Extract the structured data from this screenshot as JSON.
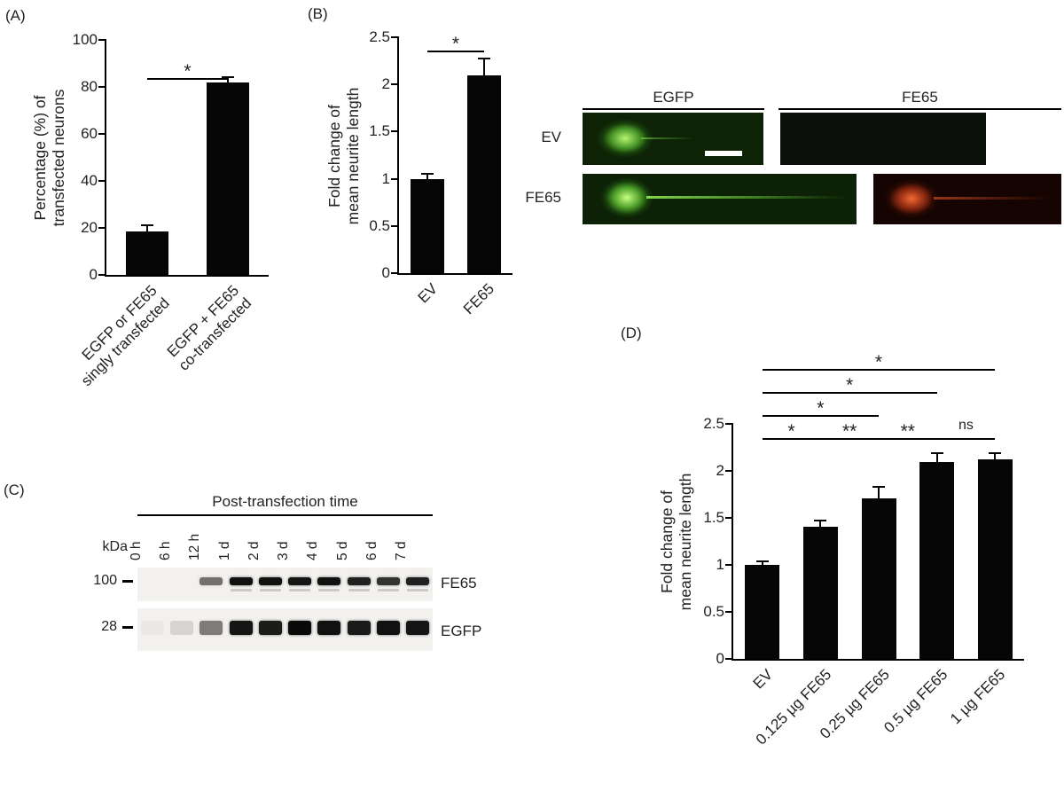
{
  "panels": {
    "a": "(A)",
    "b": "(B)",
    "c": "(C)",
    "d": "(D)"
  },
  "chart_data": [
    {
      "id": "A",
      "type": "bar",
      "title": "",
      "ylabel": "Percentage (%) of\ntransfected neurons",
      "categories": [
        "EGFP or FE65\nsingly transfected",
        "EGFP + FE65\nco-transfected"
      ],
      "values": [
        18.5,
        82
      ],
      "errors": [
        2.5,
        2
      ],
      "ylim": [
        0,
        100
      ],
      "yticks": [
        0,
        20,
        40,
        60,
        80,
        100
      ],
      "grid": false,
      "bar_color": "#060606",
      "significance": [
        {
          "from": 0,
          "to": 1,
          "label": "*",
          "level": 0
        }
      ]
    },
    {
      "id": "B",
      "type": "bar",
      "title": "",
      "ylabel": "Fold change of\nmean neurite length",
      "categories": [
        "EV",
        "FE65"
      ],
      "values": [
        1.0,
        2.1
      ],
      "errors": [
        0.05,
        0.17
      ],
      "ylim": [
        0,
        2.5
      ],
      "yticks": [
        0,
        0.5,
        1,
        1.5,
        2,
        2.5
      ],
      "grid": false,
      "bar_color": "#060606",
      "significance": [
        {
          "from": 0,
          "to": 1,
          "label": "*",
          "level": 0
        }
      ]
    },
    {
      "id": "C",
      "type": "table",
      "title": "Post-transfection time",
      "kda_label": "kDa",
      "lanes": [
        "0 h",
        "6 h",
        "12 h",
        "1 d",
        "2 d",
        "3 d",
        "4 d",
        "5 d",
        "6 d",
        "7 d"
      ],
      "rows": [
        {
          "protein": "FE65",
          "kda_marker": "100",
          "band_intensities": [
            0,
            0,
            0.55,
            0.97,
            0.97,
            0.95,
            0.97,
            0.9,
            0.82,
            0.9
          ]
        },
        {
          "protein": "EGFP",
          "kda_marker": "28",
          "band_intensities": [
            0.03,
            0.12,
            0.5,
            0.95,
            0.92,
            1,
            0.97,
            0.93,
            0.97,
            0.95
          ]
        }
      ]
    },
    {
      "id": "D",
      "type": "bar",
      "title": "",
      "ylabel": "Fold change of\nmean neurite length",
      "categories": [
        "EV",
        "0.125 µg FE65",
        "0.25 µg FE65",
        "0.5 µg FE65",
        "1 µg FE65"
      ],
      "values": [
        1.0,
        1.41,
        1.71,
        2.09,
        2.12
      ],
      "errors": [
        0.04,
        0.06,
        0.12,
        0.1,
        0.07
      ],
      "ylim": [
        0,
        2.5
      ],
      "yticks": [
        0,
        0.5,
        1,
        1.5,
        2,
        2.5
      ],
      "grid": false,
      "bar_color": "#060606",
      "significance": [
        {
          "from": 0,
          "to": 1,
          "label": "*",
          "level": 0
        },
        {
          "from": 1,
          "to": 2,
          "label": "**",
          "level": 0
        },
        {
          "from": 2,
          "to": 3,
          "label": "**",
          "level": 0
        },
        {
          "from": 3,
          "to": 4,
          "label": "ns",
          "level": 0
        },
        {
          "from": 0,
          "to": 2,
          "label": "*",
          "level": 1
        },
        {
          "from": 0,
          "to": 3,
          "label": "*",
          "level": 2
        },
        {
          "from": 0,
          "to": 4,
          "label": "*",
          "level": 3
        }
      ]
    }
  ],
  "microscopy": {
    "column_headers": [
      "EGFP",
      "FE65"
    ],
    "row_labels": [
      "EV",
      "FE65"
    ],
    "colors": {
      "egfp_green": "#6fe13c",
      "fe65_red": "#e05a28",
      "image_background": "#0d2106"
    },
    "images": [
      {
        "name": "ev-egfp",
        "description": "EV neuron, EGFP channel, short neurite, white scale bar"
      },
      {
        "name": "ev-fe65",
        "description": "EV neuron, FE65 channel, no signal"
      },
      {
        "name": "fe65-egfp",
        "description": "FE65 neuron, EGFP channel, long neurite"
      },
      {
        "name": "fe65-fe65",
        "description": "FE65 neuron, FE65 channel, red signal"
      }
    ]
  }
}
